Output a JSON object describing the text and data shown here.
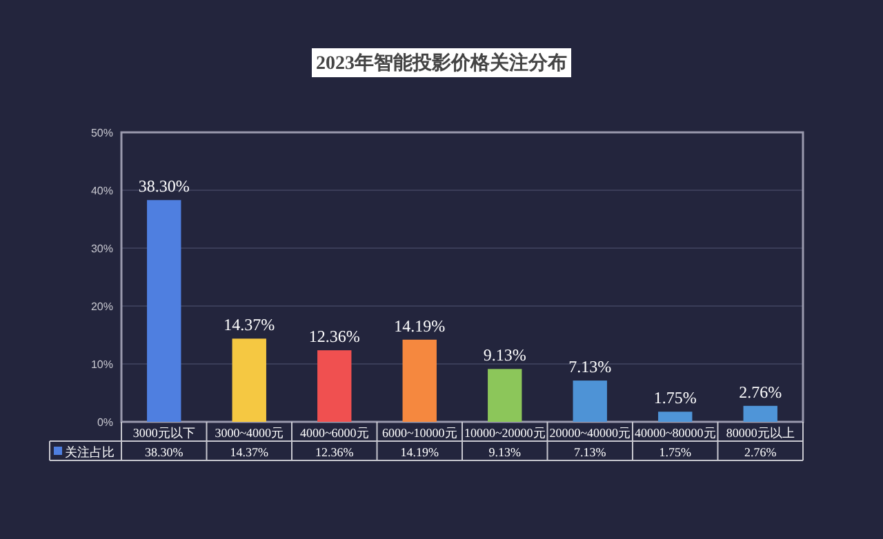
{
  "chart_data": {
    "type": "bar",
    "title": "2023年智能投影价格关注分布",
    "categories": [
      "3000元以下",
      "3000~4000元",
      "4000~6000元",
      "6000~10000元",
      "10000~20000元",
      "20000~40000元",
      "40000~80000元",
      "80000元以上"
    ],
    "series": [
      {
        "name": "关注占比",
        "colors": [
          "#4f7fe0",
          "#f5c842",
          "#f05050",
          "#f5883f",
          "#8cc65a",
          "#4e93d6",
          "#4f95d8",
          "#4f95d8"
        ],
        "values": [
          38.3,
          14.37,
          12.36,
          14.19,
          9.13,
          7.13,
          1.75,
          2.76
        ],
        "value_labels": [
          "38.30%",
          "14.37%",
          "12.36%",
          "14.19%",
          "9.13%",
          "7.13%",
          "1.75%",
          "2.76%"
        ]
      }
    ],
    "ylim": [
      0,
      50
    ],
    "yticks": [
      {
        "value": 0,
        "label": "0%"
      },
      {
        "value": 10,
        "label": "10%"
      },
      {
        "value": 20,
        "label": "20%"
      },
      {
        "value": 30,
        "label": "30%"
      },
      {
        "value": 40,
        "label": "40%"
      },
      {
        "value": 50,
        "label": "50%"
      }
    ],
    "grid": "y"
  }
}
